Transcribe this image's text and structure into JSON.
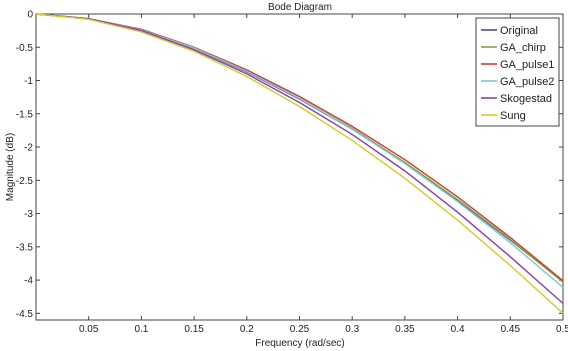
{
  "chart_data": {
    "type": "line",
    "title": "Bode Diagram",
    "xlabel": "Frequency  (rad/sec)",
    "ylabel": "Magnitude (dB)",
    "xlim": [
      0,
      0.5
    ],
    "ylim": [
      -4.6,
      0
    ],
    "grid": false,
    "legend_position": "top-right",
    "x_ticks": [
      0.05,
      0.1,
      0.15,
      0.2,
      0.25,
      0.3,
      0.35,
      0.4,
      0.45,
      0.5
    ],
    "x_tick_labels": [
      "0.05",
      "0.1",
      "0.15",
      "0.2",
      "0.25",
      "0.3",
      "0.35",
      "0.4",
      "0.45",
      "0.5"
    ],
    "y_ticks": [
      0,
      -0.5,
      -1,
      -1.5,
      -2,
      -2.5,
      -3,
      -3.5,
      -4,
      -4.5
    ],
    "y_tick_labels": [
      "0",
      "-0.5",
      "-1",
      "-1.5",
      "-2",
      "-2.5",
      "-3",
      "-3.5",
      "-4",
      "-4.5"
    ],
    "x": [
      0.0,
      0.05,
      0.1,
      0.15,
      0.2,
      0.25,
      0.3,
      0.35,
      0.4,
      0.45,
      0.5
    ],
    "series": [
      {
        "name": "Original",
        "color": "#4a4f8f",
        "values": [
          0,
          -0.07,
          -0.24,
          -0.52,
          -0.87,
          -1.28,
          -1.73,
          -2.24,
          -2.8,
          -3.4,
          -4.02
        ]
      },
      {
        "name": "GA_chirp",
        "color": "#7fa838",
        "values": [
          0,
          -0.07,
          -0.24,
          -0.52,
          -0.86,
          -1.27,
          -1.72,
          -2.23,
          -2.79,
          -3.39,
          -4.03
        ]
      },
      {
        "name": "GA_pulse1",
        "color": "#d03a2e",
        "values": [
          0,
          -0.07,
          -0.23,
          -0.5,
          -0.84,
          -1.24,
          -1.69,
          -2.19,
          -2.75,
          -3.36,
          -4.01
        ]
      },
      {
        "name": "GA_pulse2",
        "color": "#7ec3e0",
        "values": [
          0,
          -0.07,
          -0.24,
          -0.51,
          -0.86,
          -1.27,
          -1.73,
          -2.25,
          -2.82,
          -3.44,
          -4.11
        ]
      },
      {
        "name": "Skogestad",
        "color": "#8a3fa8",
        "values": [
          0,
          -0.07,
          -0.25,
          -0.54,
          -0.9,
          -1.33,
          -1.81,
          -2.36,
          -2.98,
          -3.65,
          -4.35
        ]
      },
      {
        "name": "Sung",
        "color": "#d8c82a",
        "values": [
          0,
          -0.08,
          -0.27,
          -0.56,
          -0.94,
          -1.39,
          -1.9,
          -2.47,
          -3.1,
          -3.78,
          -4.5
        ]
      }
    ]
  }
}
